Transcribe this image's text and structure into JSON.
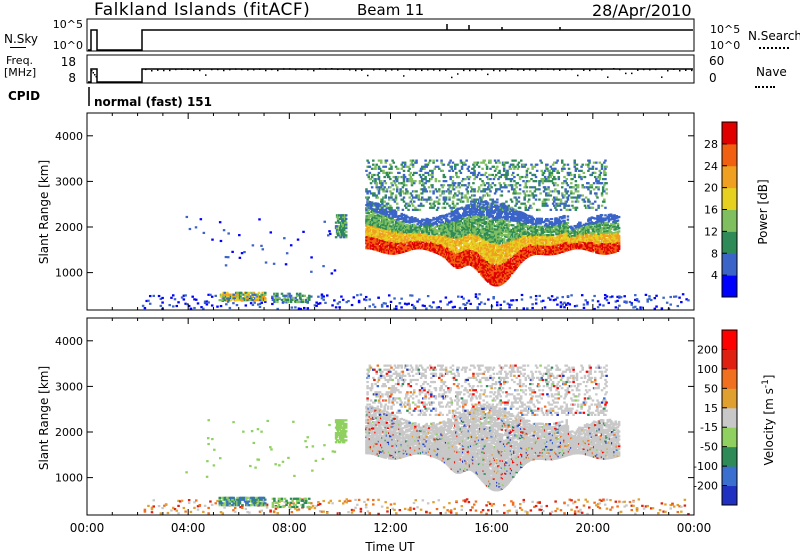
{
  "header": {
    "title": "Falkland Islands (fitACF)",
    "beam": "Beam 11",
    "date": "28/Apr/2010"
  },
  "panels_top": {
    "nsky_label": "N.Sky",
    "nsearch_label": "N.Search",
    "freq_label_1": "Freq.",
    "freq_label_2": "[MHz]",
    "nave_label": "Nave",
    "cpid_label": "CPID",
    "cpid_value": "normal (fast) 151",
    "noise_ticks": [
      "10^5",
      "10^0"
    ],
    "freq_ticks": [
      "18",
      "8"
    ],
    "nave_ticks": [
      "60",
      "0"
    ]
  },
  "chart_data": [
    {
      "type": "heatmap",
      "title": "",
      "ylabel": "Slant Range [km]",
      "xlabel": "",
      "x_ticks": [
        "00:00",
        "04:00",
        "08:00",
        "12:00",
        "16:00",
        "20:00",
        "00:00"
      ],
      "y_ticks": [
        "1000",
        "2000",
        "3000",
        "4000"
      ],
      "ylim": [
        180,
        4500
      ],
      "xlim_hours": [
        0,
        24
      ],
      "colorbar": {
        "label": "Power [dB]",
        "ticks": [
          "28",
          "24",
          "20",
          "16",
          "12",
          "8",
          "4"
        ],
        "colors": [
          "#0000ff",
          "#3b64c8",
          "#2e8b57",
          "#7fbf5f",
          "#e6d020",
          "#f0a020",
          "#f06010",
          "#e00000"
        ]
      }
    },
    {
      "type": "heatmap",
      "title": "",
      "ylabel": "Slant Range [km]",
      "xlabel": "Time UT",
      "x_ticks": [
        "00:00",
        "04:00",
        "08:00",
        "12:00",
        "16:00",
        "20:00",
        "00:00"
      ],
      "y_ticks": [
        "1000",
        "2000",
        "3000",
        "4000"
      ],
      "ylim": [
        180,
        4500
      ],
      "xlim_hours": [
        0,
        24
      ],
      "colorbar": {
        "label": "Velocity [m s",
        "label_sup": "-1",
        "label_end": "]",
        "ticks": [
          "200",
          "100",
          "50",
          "15",
          "-15",
          "-50",
          "-100",
          "-200"
        ],
        "colors": [
          "#2030c0",
          "#3a6fd0",
          "#2e8b57",
          "#8fd060",
          "#c8c8c8",
          "#e0a030",
          "#f07020",
          "#e02010",
          "#ff0000"
        ]
      }
    }
  ]
}
